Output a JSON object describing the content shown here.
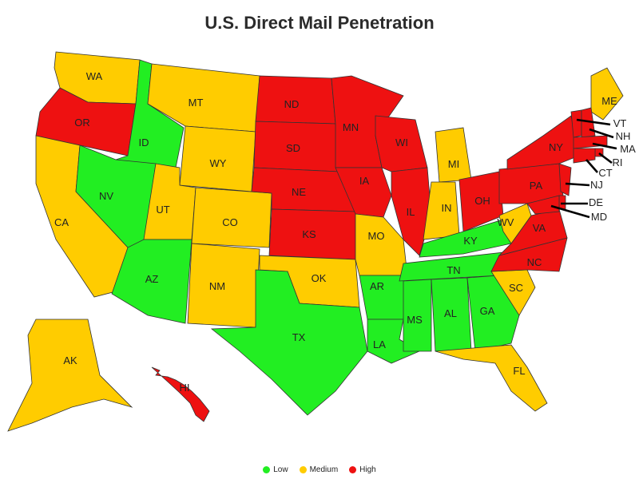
{
  "title": "U.S. Direct Mail Penetration",
  "colors": {
    "low": "#22ee22",
    "medium": "#ffcc00",
    "high": "#ee1111"
  },
  "legend": [
    {
      "key": "low",
      "label": "Low"
    },
    {
      "key": "medium",
      "label": "Medium"
    },
    {
      "key": "high",
      "label": "High"
    }
  ],
  "states": [
    {
      "abbr": "WA",
      "level": "medium"
    },
    {
      "abbr": "OR",
      "level": "high"
    },
    {
      "abbr": "CA",
      "level": "medium"
    },
    {
      "abbr": "ID",
      "level": "low"
    },
    {
      "abbr": "NV",
      "level": "low"
    },
    {
      "abbr": "MT",
      "level": "medium"
    },
    {
      "abbr": "WY",
      "level": "medium"
    },
    {
      "abbr": "UT",
      "level": "medium"
    },
    {
      "abbr": "AZ",
      "level": "low"
    },
    {
      "abbr": "CO",
      "level": "medium"
    },
    {
      "abbr": "NM",
      "level": "medium"
    },
    {
      "abbr": "ND",
      "level": "high"
    },
    {
      "abbr": "SD",
      "level": "high"
    },
    {
      "abbr": "NE",
      "level": "high"
    },
    {
      "abbr": "KS",
      "level": "high"
    },
    {
      "abbr": "OK",
      "level": "medium"
    },
    {
      "abbr": "TX",
      "level": "low"
    },
    {
      "abbr": "MN",
      "level": "high"
    },
    {
      "abbr": "IA",
      "level": "high"
    },
    {
      "abbr": "MO",
      "level": "medium"
    },
    {
      "abbr": "AR",
      "level": "low"
    },
    {
      "abbr": "LA",
      "level": "low"
    },
    {
      "abbr": "WI",
      "level": "high"
    },
    {
      "abbr": "IL",
      "level": "high"
    },
    {
      "abbr": "MI",
      "level": "medium"
    },
    {
      "abbr": "IN",
      "level": "medium"
    },
    {
      "abbr": "OH",
      "level": "high"
    },
    {
      "abbr": "KY",
      "level": "low"
    },
    {
      "abbr": "TN",
      "level": "low"
    },
    {
      "abbr": "MS",
      "level": "low"
    },
    {
      "abbr": "AL",
      "level": "low"
    },
    {
      "abbr": "GA",
      "level": "low"
    },
    {
      "abbr": "FL",
      "level": "medium"
    },
    {
      "abbr": "SC",
      "level": "medium"
    },
    {
      "abbr": "NC",
      "level": "high"
    },
    {
      "abbr": "VA",
      "level": "high"
    },
    {
      "abbr": "WV",
      "level": "medium"
    },
    {
      "abbr": "PA",
      "level": "high"
    },
    {
      "abbr": "NY",
      "level": "high"
    },
    {
      "abbr": "ME",
      "level": "medium"
    },
    {
      "abbr": "VT",
      "level": "high"
    },
    {
      "abbr": "NH",
      "level": "high"
    },
    {
      "abbr": "MA",
      "level": "high"
    },
    {
      "abbr": "RI",
      "level": "high"
    },
    {
      "abbr": "CT",
      "level": "high"
    },
    {
      "abbr": "NJ",
      "level": "high"
    },
    {
      "abbr": "DE",
      "level": "high"
    },
    {
      "abbr": "MD",
      "level": "high"
    },
    {
      "abbr": "AK",
      "level": "medium"
    },
    {
      "abbr": "HI",
      "level": "high"
    }
  ]
}
